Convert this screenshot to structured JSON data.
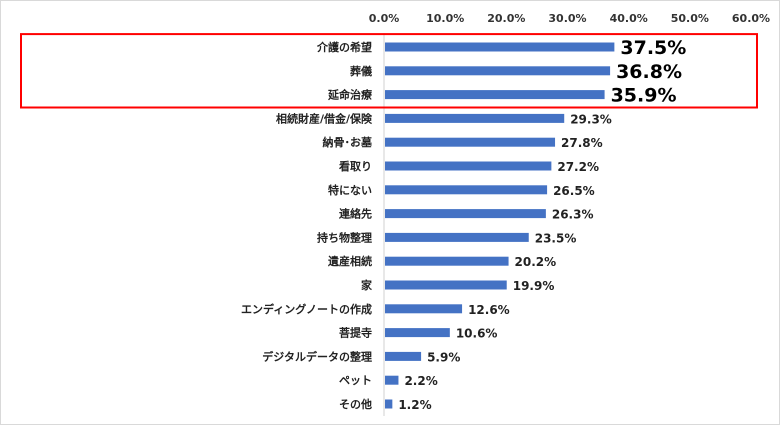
{
  "chart_data": {
    "type": "bar",
    "orientation": "horizontal",
    "x_axis_position": "top",
    "grid": false,
    "xlim": [
      0,
      60
    ],
    "x_ticks": [
      "0.0%",
      "10.0%",
      "20.0%",
      "30.0%",
      "40.0%",
      "50.0%",
      "60.0%"
    ],
    "bar_color": "#4472c4",
    "highlight_box_color": "#ff0000",
    "highlighted_categories": 3,
    "categories": [
      "介護の希望",
      "葬儀",
      "延命治療",
      "相続財産/借金/保険",
      "納骨･お墓",
      "看取り",
      "特にない",
      "連絡先",
      "持ち物整理",
      "遺産相続",
      "家",
      "エンディングノートの作成",
      "菩提寺",
      "デジタルデータの整理",
      "ペット",
      "その他"
    ],
    "values": [
      37.5,
      36.8,
      35.9,
      29.3,
      27.8,
      27.2,
      26.5,
      26.3,
      23.5,
      20.2,
      19.9,
      12.6,
      10.6,
      5.9,
      2.2,
      1.2
    ],
    "value_labels": [
      "37.5%",
      "36.8%",
      "35.9%",
      "29.3%",
      "27.8%",
      "27.2%",
      "26.5%",
      "26.3%",
      "23.5%",
      "20.2%",
      "19.9%",
      "12.6%",
      "10.6%",
      "5.9%",
      "2.2%",
      "1.2%"
    ]
  }
}
